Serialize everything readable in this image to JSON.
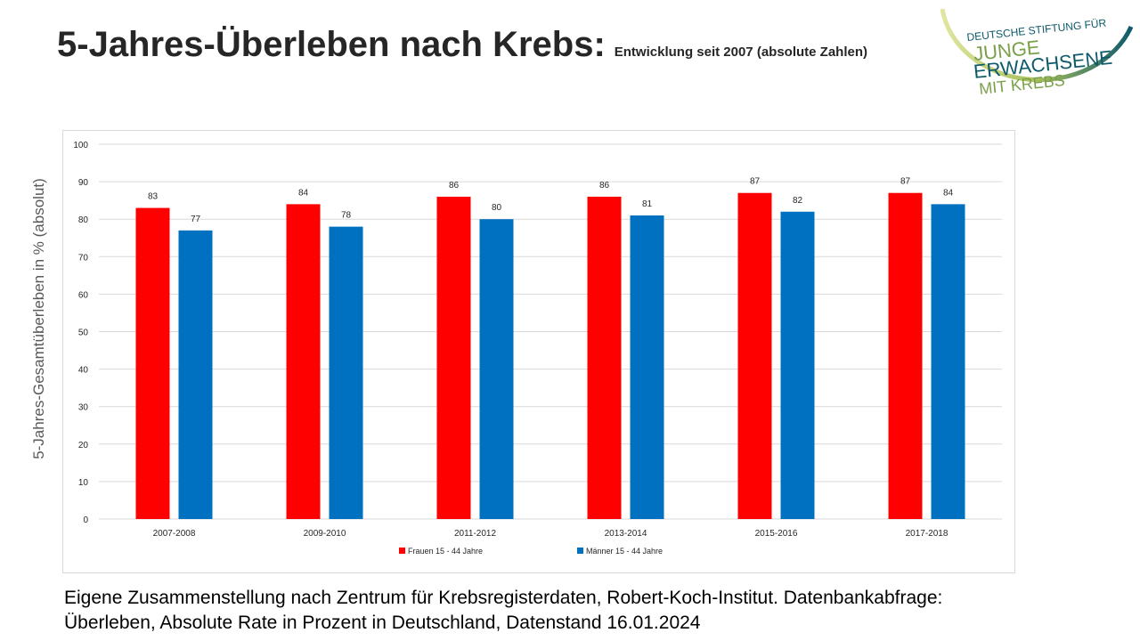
{
  "header": {
    "title": "5-Jahres-Überleben nach Krebs:",
    "subtitle": "Entwicklung seit 2007 (absolute Zahlen)"
  },
  "logo": {
    "line1": "DEUTSCHE STIFTUNG FÜR",
    "line2": "JUNGE",
    "line3": "ERWACHSENE",
    "line4": "MIT KREBS",
    "colors": {
      "teal": "#0e5a6b",
      "green": "#7aa04a",
      "ring_light": "#c8d66a"
    }
  },
  "chart_data": {
    "type": "bar",
    "categories": [
      "2007-2008",
      "2009-2010",
      "2011-2012",
      "2013-2014",
      "2015-2016",
      "2017-2018"
    ],
    "series": [
      {
        "name": "Frauen 15 - 44 Jahre",
        "values": [
          83,
          84,
          86,
          86,
          87,
          87
        ],
        "color": "#ff0000"
      },
      {
        "name": "Männer 15 - 44 Jahre",
        "values": [
          77,
          78,
          80,
          81,
          82,
          84
        ],
        "color": "#0070c0"
      }
    ],
    "ylabel": "5-Jahres-Gesamtüberleben  in % (absolut)",
    "ylim": [
      0,
      100
    ],
    "yticks": [
      0,
      10,
      20,
      30,
      40,
      50,
      60,
      70,
      80,
      90,
      100
    ],
    "grid": true,
    "legend": "bottom",
    "data_labels": true
  },
  "footnote": {
    "line1": "Eigene Zusammenstellung nach Zentrum für Krebsregisterdaten, Robert-Koch-Institut. Datenbankabfrage:",
    "line2": "Überleben, Absolute Rate in Prozent in Deutschland, Datenstand 16.01.2024"
  }
}
